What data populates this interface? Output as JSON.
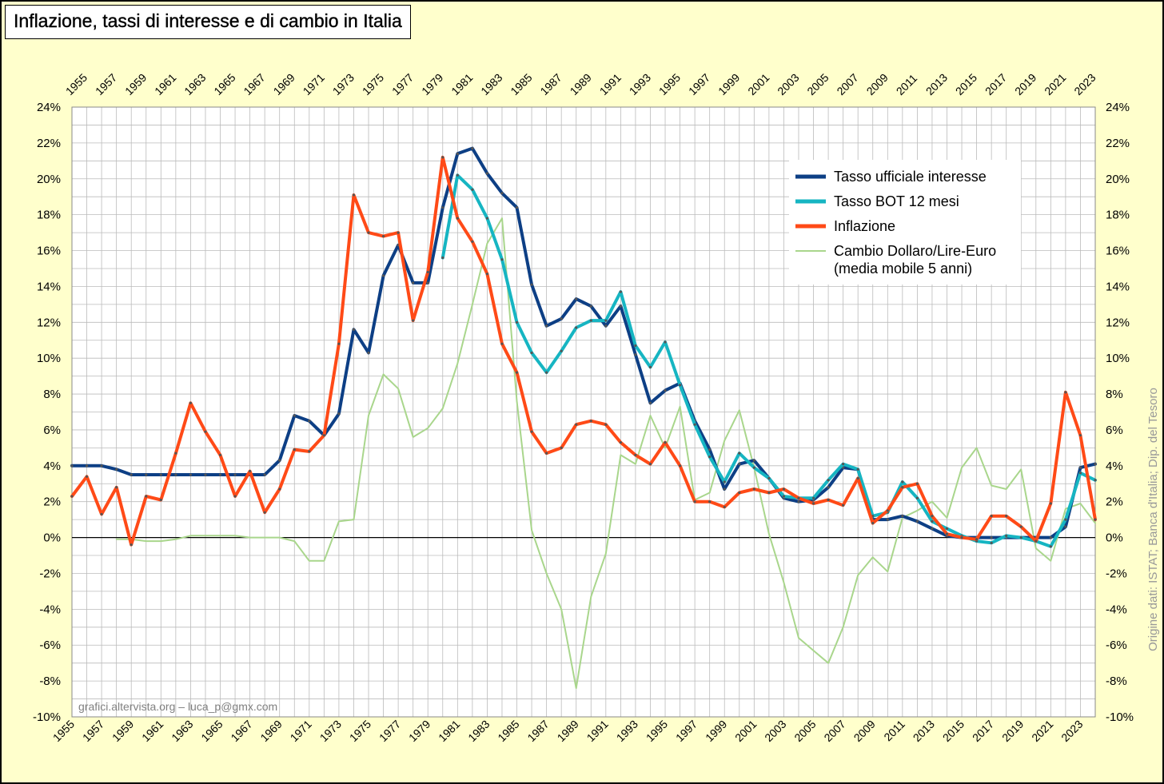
{
  "title": "Inflazione, tassi di interesse e di cambio in Italia",
  "watermark": "grafici.altervista.org – luca_p@gmx.com",
  "source_note": "Origine dati: ISTAT; Banca d'Italia; Dip. del Tesoro",
  "colors": {
    "background": "#ffffcc",
    "plot_area": "#ffffff",
    "grid": "#bbbbbb",
    "tasso_ufficiale": "#0d3f85",
    "bot": "#16b5c2",
    "inflazione": "#ff4a17",
    "cambio": "#a9d68c"
  },
  "chart_data": {
    "type": "line",
    "xlim": [
      1955,
      2024
    ],
    "ylim": [
      -10,
      24
    ],
    "y_tick_step": 2,
    "y_tick_labels": [
      "-10%",
      "-8%",
      "-6%",
      "-4%",
      "-2%",
      "0%",
      "2%",
      "4%",
      "6%",
      "8%",
      "10%",
      "12%",
      "14%",
      "16%",
      "18%",
      "20%",
      "22%",
      "24%"
    ],
    "x_tick_labels": [
      "1955",
      "1957",
      "1959",
      "1961",
      "1963",
      "1965",
      "1967",
      "1969",
      "1971",
      "1973",
      "1975",
      "1977",
      "1979",
      "1981",
      "1983",
      "1985",
      "1987",
      "1989",
      "1991",
      "1993",
      "1995",
      "1997",
      "1999",
      "2001",
      "2003",
      "2005",
      "2007",
      "2009",
      "2011",
      "2013",
      "2015",
      "2017",
      "2019",
      "2021",
      "2023"
    ],
    "grid": true,
    "legend_position": "top-right",
    "series": [
      {
        "name": "Tasso ufficiale interesse",
        "color": "#0d3f85",
        "x": [
          1955,
          1956,
          1957,
          1958,
          1959,
          1960,
          1961,
          1962,
          1963,
          1964,
          1965,
          1966,
          1967,
          1968,
          1969,
          1970,
          1971,
          1972,
          1973,
          1974,
          1975,
          1976,
          1977,
          1978,
          1979,
          1980,
          1981,
          1982,
          1983,
          1984,
          1985,
          1986,
          1987,
          1988,
          1989,
          1990,
          1991,
          1992,
          1993,
          1994,
          1995,
          1996,
          1997,
          1998,
          1999,
          2000,
          2001,
          2002,
          2003,
          2004,
          2005,
          2006,
          2007,
          2008,
          2009,
          2010,
          2011,
          2012,
          2013,
          2014,
          2015,
          2016,
          2017,
          2018,
          2019,
          2020,
          2021,
          2022,
          2023,
          2024
        ],
        "y": [
          4.0,
          4.0,
          4.0,
          3.8,
          3.5,
          3.5,
          3.5,
          3.5,
          3.5,
          3.5,
          3.5,
          3.5,
          3.5,
          3.5,
          4.3,
          6.8,
          6.5,
          5.7,
          6.9,
          11.6,
          10.3,
          14.6,
          16.3,
          14.2,
          14.2,
          18.4,
          21.4,
          21.7,
          20.3,
          19.2,
          18.4,
          14.1,
          11.8,
          12.2,
          13.3,
          12.9,
          11.8,
          12.9,
          10.2,
          7.5,
          8.2,
          8.6,
          6.5,
          4.9,
          2.7,
          4.1,
          4.3,
          3.3,
          2.2,
          2.0,
          2.1,
          2.8,
          3.9,
          3.8,
          1.0,
          1.0,
          1.2,
          0.9,
          0.5,
          0.1,
          0.0,
          0.0,
          0.0,
          0.0,
          0.0,
          0.0,
          0.0,
          0.6,
          3.9,
          4.1
        ]
      },
      {
        "name": "Tasso BOT 12 mesi",
        "color": "#16b5c2",
        "x": [
          1980,
          1981,
          1982,
          1983,
          1984,
          1985,
          1986,
          1987,
          1988,
          1989,
          1990,
          1991,
          1992,
          1993,
          1994,
          1995,
          1996,
          1997,
          1998,
          1999,
          2000,
          2001,
          2002,
          2003,
          2004,
          2005,
          2006,
          2007,
          2008,
          2009,
          2010,
          2011,
          2012,
          2013,
          2014,
          2015,
          2016,
          2017,
          2018,
          2019,
          2020,
          2021,
          2022,
          2023,
          2024
        ],
        "y": [
          15.6,
          20.2,
          19.4,
          17.8,
          15.5,
          12.0,
          10.3,
          9.2,
          10.4,
          11.7,
          12.1,
          12.1,
          13.7,
          10.7,
          9.5,
          10.9,
          8.5,
          6.3,
          4.5,
          3.1,
          4.7,
          3.9,
          3.3,
          2.3,
          2.2,
          2.2,
          3.2,
          4.1,
          3.8,
          1.2,
          1.4,
          3.1,
          2.2,
          0.9,
          0.5,
          0.1,
          -0.2,
          -0.3,
          0.1,
          0.0,
          -0.2,
          -0.5,
          1.0,
          3.6,
          3.2
        ]
      },
      {
        "name": "Inflazione",
        "color": "#ff4a17",
        "x": [
          1955,
          1956,
          1957,
          1958,
          1959,
          1960,
          1961,
          1962,
          1963,
          1964,
          1965,
          1966,
          1967,
          1968,
          1969,
          1970,
          1971,
          1972,
          1973,
          1974,
          1975,
          1976,
          1977,
          1978,
          1979,
          1980,
          1981,
          1982,
          1983,
          1984,
          1985,
          1986,
          1987,
          1988,
          1989,
          1990,
          1991,
          1992,
          1993,
          1994,
          1995,
          1996,
          1997,
          1998,
          1999,
          2000,
          2001,
          2002,
          2003,
          2004,
          2005,
          2006,
          2007,
          2008,
          2009,
          2010,
          2011,
          2012,
          2013,
          2014,
          2015,
          2016,
          2017,
          2018,
          2019,
          2020,
          2021,
          2022,
          2023,
          2024
        ],
        "y": [
          2.3,
          3.4,
          1.3,
          2.8,
          -0.4,
          2.3,
          2.1,
          4.7,
          7.5,
          5.9,
          4.6,
          2.3,
          3.7,
          1.4,
          2.7,
          4.9,
          4.8,
          5.7,
          10.8,
          19.1,
          17.0,
          16.8,
          17.0,
          12.1,
          14.8,
          21.2,
          17.8,
          16.5,
          14.7,
          10.8,
          9.2,
          5.9,
          4.7,
          5.0,
          6.3,
          6.5,
          6.3,
          5.3,
          4.6,
          4.1,
          5.3,
          4.0,
          2.0,
          2.0,
          1.7,
          2.5,
          2.7,
          2.5,
          2.7,
          2.2,
          1.9,
          2.1,
          1.8,
          3.3,
          0.8,
          1.5,
          2.8,
          3.0,
          1.2,
          0.2,
          0.0,
          -0.1,
          1.2,
          1.2,
          0.6,
          -0.2,
          1.9,
          8.1,
          5.7,
          1.0
        ]
      },
      {
        "name": "Cambio Dollaro/Lire-Euro",
        "name_line2": "(media mobile 5 anni)",
        "color": "#a9d68c",
        "x": [
          1955,
          1956,
          1957,
          1958,
          1959,
          1960,
          1961,
          1962,
          1963,
          1964,
          1965,
          1966,
          1967,
          1968,
          1969,
          1970,
          1971,
          1972,
          1973,
          1974,
          1975,
          1976,
          1977,
          1978,
          1979,
          1980,
          1981,
          1982,
          1983,
          1984,
          1985,
          1986,
          1987,
          1988,
          1989,
          1990,
          1991,
          1992,
          1993,
          1994,
          1995,
          1996,
          1997,
          1998,
          1999,
          2000,
          2001,
          2002,
          2003,
          2004,
          2005,
          2006,
          2007,
          2008,
          2009,
          2010,
          2011,
          2012,
          2013,
          2014,
          2015,
          2016,
          2017,
          2018,
          2019,
          2020,
          2021,
          2022,
          2023,
          2024
        ],
        "y": [
          null,
          null,
          null,
          -0.1,
          -0.1,
          -0.2,
          -0.2,
          -0.1,
          0.1,
          0.1,
          0.1,
          0.1,
          0.0,
          0.0,
          0.0,
          -0.2,
          -1.3,
          -1.3,
          0.9,
          1.0,
          6.8,
          9.1,
          8.3,
          5.6,
          6.1,
          7.2,
          9.7,
          13.0,
          16.4,
          17.8,
          7.6,
          0.4,
          -2.0,
          -4.0,
          -8.4,
          -3.3,
          -0.9,
          4.6,
          4.1,
          6.8,
          5.0,
          7.3,
          2.1,
          2.5,
          5.4,
          7.1,
          3.9,
          0.2,
          -2.5,
          -5.6,
          -6.3,
          -7.0,
          -5.0,
          -2.1,
          -1.1,
          -1.9,
          1.1,
          1.5,
          2.0,
          1.1,
          3.9,
          5.0,
          2.9,
          2.7,
          3.8,
          -0.6,
          -1.3,
          1.6,
          1.9,
          0.8
        ]
      }
    ]
  }
}
